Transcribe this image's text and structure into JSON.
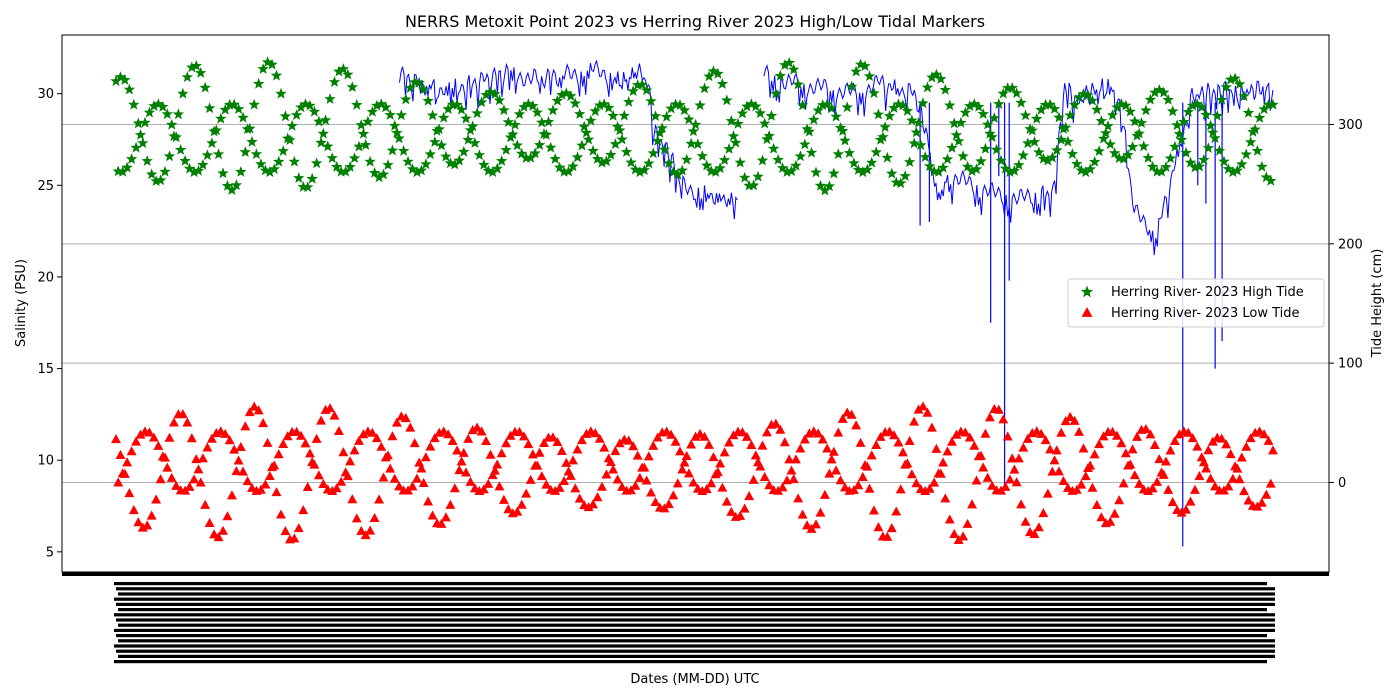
{
  "colors": {
    "salinity_line": "#0000ff",
    "high_tide": "#008000",
    "low_tide": "#ff0000",
    "grid": "#b0b0b0",
    "axis": "#000000"
  },
  "chart_data": {
    "type": "scatter",
    "title": "NERRS Metoxit Point 2023 vs Herring River 2023 High/Low Tidal Markers",
    "xlabel": "Dates (MM-DD) UTC",
    "ylabel_left": "Salinity (PSU)",
    "ylabel_right": "Tide Height (cm)",
    "x_tick_labels_note": "illegible dense overlapping date labels",
    "y_left": {
      "ticks": [
        5,
        10,
        15,
        20,
        25,
        30
      ],
      "ylim": [
        3.9,
        33.2
      ]
    },
    "y_right": {
      "ticks": [
        0,
        100,
        200,
        300
      ],
      "ylim": [
        -75,
        375
      ]
    },
    "grid": "right-axis horizontal",
    "legend": {
      "placement": "center-right",
      "entries": [
        {
          "name": "Herring River- 2023 High Tide",
          "marker": "star",
          "color": "#008000"
        },
        {
          "name": "Herring River- 2023 Low Tide",
          "marker": "triangle",
          "color": "#ff0000"
        }
      ]
    },
    "series": [
      {
        "name": "Herring River- 2023 High Tide",
        "axis": "right",
        "marker": "star",
        "x_range": [
          0,
          100
        ],
        "y_range_cm": [
          235,
          362
        ],
        "description": "two interleaved oscillating bands of high tide heights"
      },
      {
        "name": "Herring River- 2023 Low Tide",
        "axis": "right",
        "marker": "triangle",
        "x_range": [
          0,
          100
        ],
        "y_range_cm": [
          -55,
          70
        ],
        "description": "two interleaved oscillating bands of low tide heights"
      },
      {
        "name": "Metoxit Point salinity",
        "axis": "left",
        "style": "line",
        "segments": [
          {
            "x": [
              24.5,
              28,
              30,
              34,
              36,
              39,
              41,
              43,
              44,
              45,
              46,
              46.5,
              47,
              48,
              48.5,
              49,
              51,
              53.7
            ],
            "y": [
              31.0,
              30.2,
              30.4,
              31.2,
              30.8,
              31.0,
              31.3,
              31.0,
              30.8,
              31.4,
              30.5,
              28.0,
              27.5,
              26.5,
              25.5,
              25.0,
              24.5,
              24.2
            ]
          },
          {
            "x": [
              56,
              58,
              60,
              62,
              64,
              66,
              69,
              70,
              71,
              72,
              74,
              76,
              78,
              80,
              81,
              82,
              83,
              84,
              85,
              86,
              87,
              88,
              90,
              93,
              94,
              95,
              96,
              97,
              98,
              99,
              100
            ],
            "y": [
              31.0,
              30.6,
              30.4,
              30.2,
              30.0,
              30.6,
              30.0,
              28.0,
              24.5,
              25.5,
              25.0,
              24.5,
              24.2,
              24.6,
              24.5,
              30.5,
              29.5,
              30.0,
              30.3,
              30.5,
              28.8,
              23.5,
              22.4,
              29.8,
              30.0,
              30.1,
              30.2,
              30.0,
              30.1,
              30.3,
              30.2
            ]
          }
        ],
        "spikes": [
          {
            "x": 69.5,
            "y": 22.8
          },
          {
            "x": 70.3,
            "y": 23.0
          },
          {
            "x": 75.6,
            "y": 17.5
          },
          {
            "x": 76.3,
            "y": 25.5
          },
          {
            "x": 76.8,
            "y": 8.5
          },
          {
            "x": 77.2,
            "y": 19.8
          },
          {
            "x": 92.2,
            "y": 5.3
          },
          {
            "x": 93.5,
            "y": 25.0
          },
          {
            "x": 94.2,
            "y": 24.0
          },
          {
            "x": 95.0,
            "y": 15.0
          },
          {
            "x": 95.6,
            "y": 16.5
          }
        ]
      }
    ]
  }
}
